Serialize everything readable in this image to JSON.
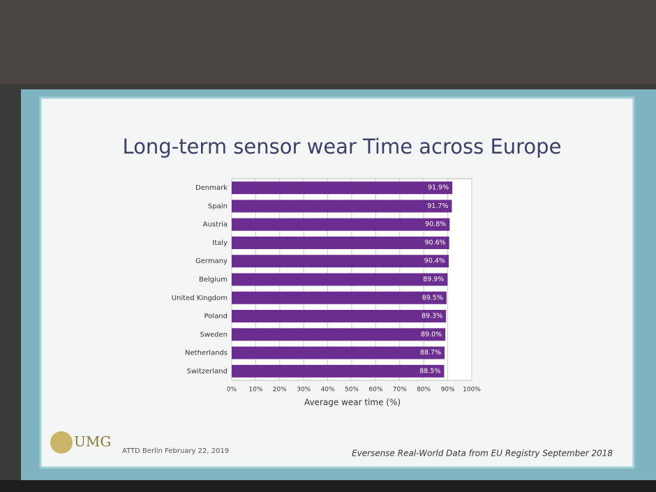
{
  "chart_data": {
    "type": "hbar",
    "title": "Long-term sensor wear Time across Europe",
    "categories": [
      "Denmark",
      "Spain",
      "Austria",
      "Italy",
      "Germany",
      "Belgium",
      "United Kingdom",
      "Poland",
      "Sweden",
      "Netherlands",
      "Switzerland"
    ],
    "values": [
      91.9,
      91.7,
      90.8,
      90.6,
      90.4,
      89.9,
      89.5,
      89.3,
      89.0,
      88.7,
      88.5
    ],
    "value_labels": [
      "91.9%",
      "91.7%",
      "90.8%",
      "90.6%",
      "90.4%",
      "89.9%",
      "89.5%",
      "89.3%",
      "89.0%",
      "88.7%",
      "88.5%"
    ],
    "color": "#6b2d8f",
    "xlabel": "Average wear time (%)",
    "xlim": [
      0,
      100
    ],
    "xticks": [
      {
        "value": 0,
        "label": "0%"
      },
      {
        "value": 10,
        "label": "10%"
      },
      {
        "value": 20,
        "label": "20%"
      },
      {
        "value": 30,
        "label": "30%"
      },
      {
        "value": 40,
        "label": "40%"
      },
      {
        "value": 50,
        "label": "50%"
      },
      {
        "value": 60,
        "label": "60%"
      },
      {
        "value": 70,
        "label": "70%"
      },
      {
        "value": 80,
        "label": "80%"
      },
      {
        "value": 90,
        "label": "90%"
      },
      {
        "value": 100,
        "label": "100%"
      }
    ],
    "grid": true
  },
  "footer": {
    "logo": "UMG",
    "event": "ATTD Berlin February 22, 2019",
    "source": "Eversense Real-World Data from EU Registry September 2018"
  }
}
